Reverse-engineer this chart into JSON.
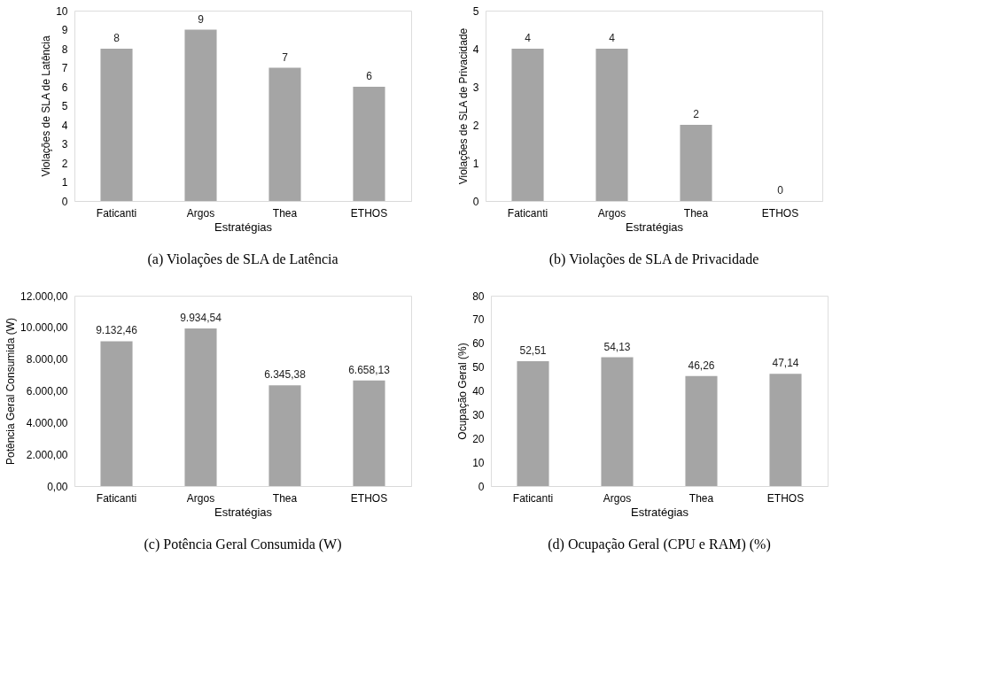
{
  "chart_data": [
    {
      "type": "bar",
      "title": "(a)  Violações de SLA de Latência",
      "xlabel": "Estratégias",
      "ylabel": "Violações de SLA de Latência",
      "categories": [
        "Faticanti",
        "Argos",
        "Thea",
        "ETHOS"
      ],
      "values": [
        8,
        9,
        7,
        6
      ],
      "color": "#a5a5a5",
      "ylim": [
        0,
        10
      ],
      "yticks": [
        0,
        1,
        2,
        3,
        4,
        5,
        6,
        7,
        8,
        9,
        10
      ],
      "data_labels": true,
      "grid": false
    },
    {
      "type": "bar",
      "title": "(b)  Violações de SLA de Privacidade",
      "xlabel": "Estratégias",
      "ylabel": "Violações de SLA de Privacidade",
      "categories": [
        "Faticanti",
        "Argos",
        "Thea",
        "ETHOS"
      ],
      "values": [
        4,
        4,
        2,
        0
      ],
      "color": "#a5a5a5",
      "ylim": [
        0,
        5
      ],
      "yticks": [
        0,
        1,
        2,
        3,
        4,
        5
      ],
      "data_labels": true,
      "grid": false
    },
    {
      "type": "bar",
      "title": "(c)  Potência Geral Consumida (W)",
      "xlabel": "Estratégias",
      "ylabel": "Potência Geral Consumida (W)",
      "categories": [
        "Faticanti",
        "Argos",
        "Thea",
        "ETHOS"
      ],
      "values": [
        9132.46,
        9934.54,
        6345.38,
        6658.13
      ],
      "value_labels": [
        "9.132,46",
        "9.934,54",
        "6.345,38",
        "6.658,13"
      ],
      "color": "#a5a5a5",
      "ylim": [
        0,
        12000
      ],
      "yticks": [
        {
          "value": 0,
          "label": "0,00"
        },
        {
          "value": 2000,
          "label": "2.000,00"
        },
        {
          "value": 4000,
          "label": "4.000,00"
        },
        {
          "value": 6000,
          "label": "6.000,00"
        },
        {
          "value": 8000,
          "label": "8.000,00"
        },
        {
          "value": 10000,
          "label": "10.000,00"
        },
        {
          "value": 12000,
          "label": "12.000,00"
        }
      ],
      "grid": false
    },
    {
      "type": "bar",
      "title": "(d)  Ocupação Geral (CPU e RAM) (%)",
      "xlabel": "Estratégias",
      "ylabel": "Ocupação Geral (%)",
      "categories": [
        "Faticanti",
        "Argos",
        "Thea",
        "ETHOS"
      ],
      "values": [
        52.51,
        54.13,
        46.26,
        47.14
      ],
      "value_labels": [
        "52,51",
        "54,13",
        "46,26",
        "47,14"
      ],
      "color": "#a5a5a5",
      "ylim": [
        0,
        80
      ],
      "yticks": [
        0,
        10,
        20,
        30,
        40,
        50,
        60,
        70,
        80
      ],
      "grid": false
    }
  ]
}
